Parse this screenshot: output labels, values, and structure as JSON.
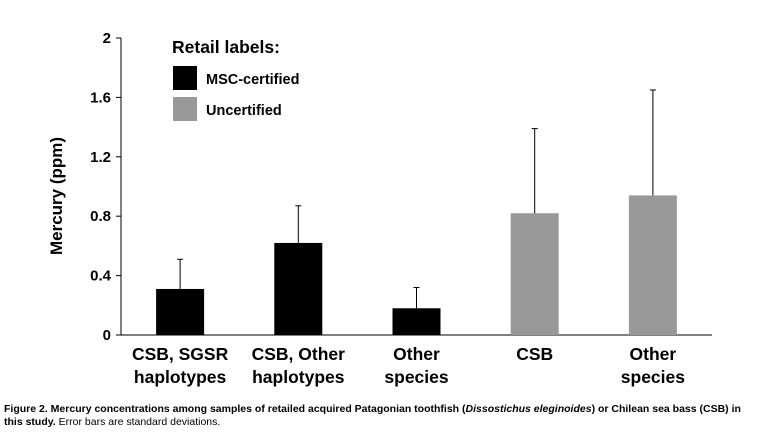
{
  "chart_data": {
    "type": "bar",
    "ylabel": "Mercury (ppm)",
    "ylim": [
      0,
      2
    ],
    "yticks": [
      0,
      0.4,
      0.8,
      1.2,
      1.6,
      2
    ],
    "ytick_labels": [
      "0",
      "0.4",
      "0.8",
      "1.2",
      "1.6",
      "2"
    ],
    "grid": false,
    "legend": {
      "title": "Retail labels:",
      "position": "top-left",
      "entries": [
        {
          "label": "MSC-certified",
          "color": "#000000"
        },
        {
          "label": "Uncertified",
          "color": "#999999"
        }
      ]
    },
    "categories": [
      {
        "lines": [
          "CSB, SGSR",
          "haplotypes"
        ],
        "value": 0.31,
        "error": 0.2,
        "group": 0
      },
      {
        "lines": [
          "CSB, Other",
          "haplotypes"
        ],
        "value": 0.62,
        "error": 0.25,
        "group": 0
      },
      {
        "lines": [
          "Other",
          "species"
        ],
        "value": 0.18,
        "error": 0.14,
        "group": 0
      },
      {
        "lines": [
          "CSB"
        ],
        "value": 0.82,
        "error": 0.57,
        "group": 1
      },
      {
        "lines": [
          "Other",
          "species"
        ],
        "value": 0.94,
        "error": 0.71,
        "group": 1
      }
    ]
  },
  "caption": {
    "bold_part": "Figure 2. Mercury concentrations among samples of retailed acquired Patagonian toothfish (",
    "italic_part": "Dissostichus eleginoides",
    "bold_part2": ") or Chilean sea bass (CSB) in this study.",
    "normal_part": " Error bars are standard deviations."
  }
}
